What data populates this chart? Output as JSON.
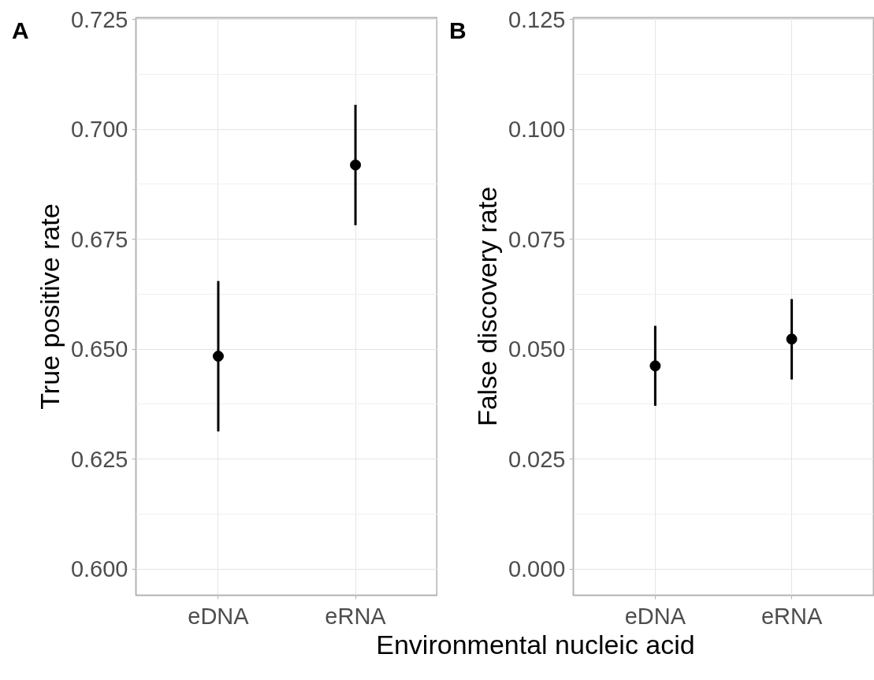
{
  "chart_data": [
    {
      "type": "scatter",
      "categories": [
        "eDNA",
        "eRNA"
      ],
      "xlabel": "Environmental nucleic acid",
      "ylabel": "True positive rate",
      "annotations": [
        "A"
      ],
      "ylim": [
        0.594,
        0.7254
      ],
      "yticks": [
        {
          "value": 0.6,
          "label": "0.600"
        },
        {
          "value": 0.625,
          "label": "0.625"
        },
        {
          "value": 0.65,
          "label": "0.650"
        },
        {
          "value": 0.675,
          "label": "0.675"
        },
        {
          "value": 0.7,
          "label": "0.700"
        },
        {
          "value": 0.725,
          "label": "0.725"
        }
      ],
      "grid": true,
      "marker": "circle",
      "series": [
        {
          "color": "#000000",
          "values": [
            0.6484,
            0.6919
          ],
          "errors": [
            [
              0.6313,
              0.6655
            ],
            [
              0.6782,
              0.7056
            ]
          ]
        }
      ]
    },
    {
      "type": "scatter",
      "categories": [
        "eDNA",
        "eRNA"
      ],
      "ylabel": "False discovery rate",
      "annotations": [
        "B"
      ],
      "ylim": [
        -0.006,
        0.1254
      ],
      "yticks": [
        {
          "value": 0.0,
          "label": "0.000"
        },
        {
          "value": 0.025,
          "label": "0.025"
        },
        {
          "value": 0.05,
          "label": "0.050"
        },
        {
          "value": 0.075,
          "label": "0.075"
        },
        {
          "value": 0.1,
          "label": "0.100"
        },
        {
          "value": 0.125,
          "label": "0.125"
        }
      ],
      "grid": true,
      "marker": "circle",
      "series": [
        {
          "color": "#000000",
          "values": [
            0.0462,
            0.0523
          ],
          "errors": [
            [
              0.0371,
              0.0553
            ],
            [
              0.0431,
              0.0614
            ]
          ]
        }
      ]
    }
  ]
}
